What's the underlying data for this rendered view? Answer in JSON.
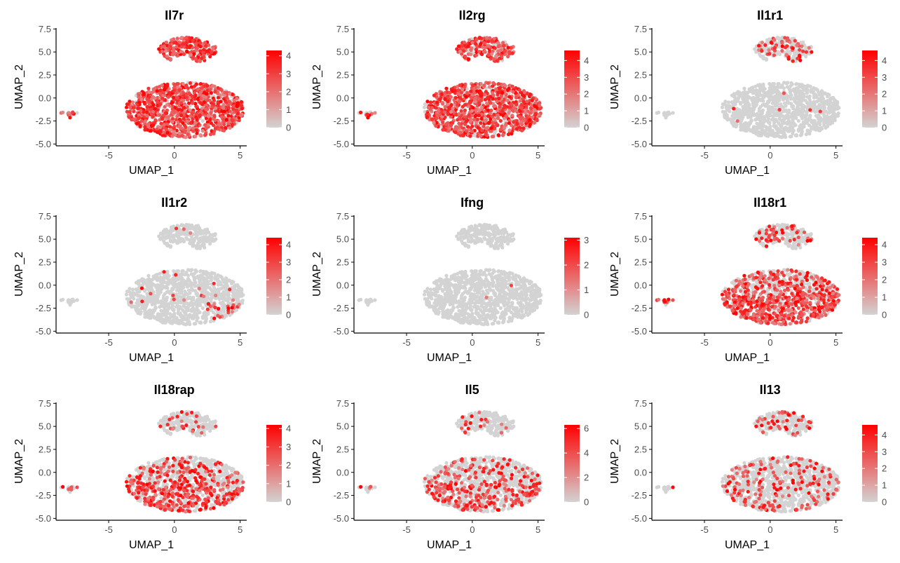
{
  "figure": {
    "colors": {
      "low": "#D3D3D3",
      "high": "#FF0000",
      "axis": "#000000",
      "tick_text": "#4D4D4D"
    }
  },
  "chart_data": [
    {
      "type": "scatter",
      "title": "Il7r",
      "xlabel": "UMAP_1",
      "ylabel": "UMAP_2",
      "xlim": [
        -9,
        5.5
      ],
      "ylim": [
        -5.2,
        7.6
      ],
      "x_ticks": [
        -5,
        0,
        5
      ],
      "y_ticks": [
        -5.0,
        -2.5,
        0.0,
        2.5,
        5.0,
        7.5
      ],
      "color_ticks": [
        0,
        1,
        2,
        3,
        4
      ],
      "color_max": 4.3,
      "expression_fraction": 0.85,
      "high_region": "broad",
      "legend": "right"
    },
    {
      "type": "scatter",
      "title": "Il2rg",
      "xlabel": "UMAP_1",
      "ylabel": "UMAP_2",
      "xlim": [
        -9,
        5.5
      ],
      "ylim": [
        -5.2,
        7.6
      ],
      "x_ticks": [
        -5,
        0,
        5
      ],
      "y_ticks": [
        -5.0,
        -2.5,
        0.0,
        2.5,
        5.0,
        7.5
      ],
      "color_ticks": [
        0,
        1,
        2,
        3,
        4
      ],
      "color_max": 4.6,
      "expression_fraction": 0.8,
      "high_region": "broad",
      "legend": "right"
    },
    {
      "type": "scatter",
      "title": "Il1r1",
      "xlabel": "UMAP_1",
      "ylabel": "UMAP_2",
      "xlim": [
        -9,
        5.5
      ],
      "ylim": [
        -5.2,
        7.6
      ],
      "x_ticks": [
        -5,
        0,
        5
      ],
      "y_ticks": [
        -5.0,
        -2.5,
        0.0,
        2.5,
        5.0,
        7.5
      ],
      "color_ticks": [
        0,
        1,
        2,
        3,
        4
      ],
      "color_max": 4.6,
      "expression_fraction": 0.03,
      "high_region": "top-lobe",
      "legend": "right"
    },
    {
      "type": "scatter",
      "title": "Il1r2",
      "xlabel": "UMAP_1",
      "ylabel": "UMAP_2",
      "xlim": [
        -9,
        5.5
      ],
      "ylim": [
        -5.2,
        7.6
      ],
      "x_ticks": [
        -5,
        0,
        5
      ],
      "y_ticks": [
        -5.0,
        -2.5,
        0.0,
        2.5,
        5.0,
        7.5
      ],
      "color_ticks": [
        0,
        1,
        2,
        3,
        4
      ],
      "color_max": 4.4,
      "expression_fraction": 0.03,
      "high_region": "bottom-right",
      "legend": "right"
    },
    {
      "type": "scatter",
      "title": "Ifng",
      "xlabel": "UMAP_1",
      "ylabel": "UMAP_2",
      "xlim": [
        -9,
        5.5
      ],
      "ylim": [
        -5.2,
        7.6
      ],
      "x_ticks": [
        -5,
        0,
        5
      ],
      "y_ticks": [
        -5.0,
        -2.5,
        0.0,
        2.5,
        5.0,
        7.5
      ],
      "color_ticks": [
        0,
        1,
        2,
        3
      ],
      "color_max": 3.1,
      "expression_fraction": 0.004,
      "high_region": "sparse",
      "legend": "right"
    },
    {
      "type": "scatter",
      "title": "Il18r1",
      "xlabel": "UMAP_1",
      "ylabel": "UMAP_2",
      "xlim": [
        -9,
        5.5
      ],
      "ylim": [
        -5.2,
        7.6
      ],
      "x_ticks": [
        -5,
        0,
        5
      ],
      "y_ticks": [
        -5.0,
        -2.5,
        0.0,
        2.5,
        5.0,
        7.5
      ],
      "color_ticks": [
        0,
        1,
        2,
        3,
        4
      ],
      "color_max": 4.4,
      "expression_fraction": 0.5,
      "high_region": "bottom",
      "legend": "right"
    },
    {
      "type": "scatter",
      "title": "Il18rap",
      "xlabel": "UMAP_1",
      "ylabel": "UMAP_2",
      "xlim": [
        -9,
        5.5
      ],
      "ylim": [
        -5.2,
        7.6
      ],
      "x_ticks": [
        -5,
        0,
        5
      ],
      "y_ticks": [
        -5.0,
        -2.5,
        0.0,
        2.5,
        5.0,
        7.5
      ],
      "color_ticks": [
        0,
        1,
        2,
        3,
        4
      ],
      "color_max": 4.2,
      "expression_fraction": 0.3,
      "high_region": "bottom",
      "legend": "right"
    },
    {
      "type": "scatter",
      "title": "Il5",
      "xlabel": "UMAP_1",
      "ylabel": "UMAP_2",
      "xlim": [
        -9,
        5.5
      ],
      "ylim": [
        -5.2,
        7.6
      ],
      "x_ticks": [
        -5,
        0,
        5
      ],
      "y_ticks": [
        -5.0,
        -2.5,
        0.0,
        2.5,
        5.0,
        7.5
      ],
      "color_ticks": [
        0,
        2,
        4,
        6
      ],
      "color_max": 6.3,
      "expression_fraction": 0.22,
      "high_region": "bottom",
      "legend": "right"
    },
    {
      "type": "scatter",
      "title": "Il13",
      "xlabel": "UMAP_1",
      "ylabel": "UMAP_2",
      "xlim": [
        -9,
        5.5
      ],
      "ylim": [
        -5.2,
        7.6
      ],
      "x_ticks": [
        -5,
        0,
        5
      ],
      "y_ticks": [
        -5.0,
        -2.5,
        0.0,
        2.5,
        5.0,
        7.5
      ],
      "color_ticks": [
        0,
        1,
        2,
        3,
        4
      ],
      "color_max": 4.6,
      "expression_fraction": 0.18,
      "high_region": "broad",
      "legend": "right"
    }
  ]
}
